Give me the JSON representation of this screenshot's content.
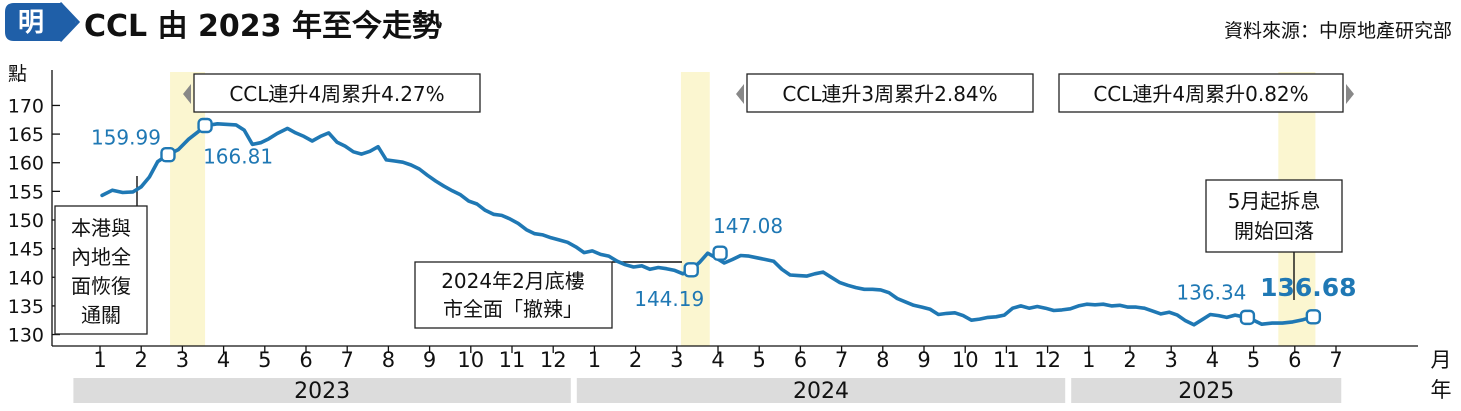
{
  "logo_char": "明",
  "chart_data": {
    "type": "line",
    "title": "CCL 由 2023 年至今走勢",
    "source": "資料來源：中原地產研究部",
    "ylabel": "點",
    "xlabel": "月年",
    "x_unit_top": "月",
    "x_unit_bottom": "年",
    "ylim": [
      128,
      172
    ],
    "yticks": [
      130,
      135,
      140,
      145,
      150,
      155,
      160,
      165,
      170
    ],
    "x_months": [
      "1",
      "2",
      "3",
      "4",
      "5",
      "6",
      "7",
      "8",
      "9",
      "10",
      "11",
      "12",
      "1",
      "2",
      "3",
      "4",
      "5",
      "6",
      "7",
      "8",
      "9",
      "10",
      "11",
      "12",
      "1",
      "2",
      "3",
      "4",
      "5",
      "6",
      "7"
    ],
    "years": [
      "2023",
      "2024",
      "2025"
    ],
    "color": "#1f78b4",
    "series": [
      {
        "values": [
          [
            1.05,
            154.3
          ],
          [
            1.3,
            155.2
          ],
          [
            1.55,
            154.8
          ],
          [
            1.8,
            154.9
          ],
          [
            2.0,
            155.8
          ],
          [
            2.2,
            157.5
          ],
          [
            2.4,
            160.2
          ],
          [
            2.65,
            161.4
          ],
          [
            2.9,
            162.3
          ],
          [
            3.15,
            164.1
          ],
          [
            3.4,
            165.5
          ],
          [
            3.6,
            166.5
          ],
          [
            3.85,
            166.8
          ],
          [
            4.1,
            166.7
          ],
          [
            4.3,
            166.6
          ],
          [
            4.5,
            165.7
          ],
          [
            4.7,
            163.2
          ],
          [
            4.9,
            163.5
          ],
          [
            5.1,
            164.2
          ],
          [
            5.3,
            165.1
          ],
          [
            5.55,
            166.0
          ],
          [
            5.75,
            165.2
          ],
          [
            5.95,
            164.6
          ],
          [
            6.15,
            163.8
          ],
          [
            6.35,
            164.6
          ],
          [
            6.55,
            165.2
          ],
          [
            6.75,
            163.6
          ],
          [
            6.95,
            162.9
          ],
          [
            7.15,
            161.9
          ],
          [
            7.35,
            161.5
          ],
          [
            7.55,
            162.0
          ],
          [
            7.75,
            162.8
          ],
          [
            7.95,
            160.5
          ],
          [
            8.15,
            160.3
          ],
          [
            8.35,
            160.1
          ],
          [
            8.55,
            159.6
          ],
          [
            8.75,
            158.9
          ],
          [
            8.95,
            157.8
          ],
          [
            9.15,
            156.8
          ],
          [
            9.35,
            155.9
          ],
          [
            9.55,
            155.1
          ],
          [
            9.75,
            154.4
          ],
          [
            9.95,
            153.3
          ],
          [
            10.15,
            152.8
          ],
          [
            10.35,
            151.7
          ],
          [
            10.55,
            151.0
          ],
          [
            10.75,
            150.8
          ],
          [
            10.95,
            150.2
          ],
          [
            11.15,
            149.4
          ],
          [
            11.35,
            148.3
          ],
          [
            11.55,
            147.6
          ],
          [
            11.75,
            147.4
          ],
          [
            11.95,
            146.9
          ],
          [
            12.15,
            146.5
          ],
          [
            12.35,
            146.1
          ],
          [
            12.55,
            145.3
          ],
          [
            12.75,
            144.3
          ],
          [
            12.95,
            144.6
          ],
          [
            13.15,
            144.0
          ],
          [
            13.35,
            143.7
          ],
          [
            13.55,
            142.8
          ],
          [
            13.75,
            142.2
          ],
          [
            13.95,
            141.8
          ],
          [
            14.15,
            142.0
          ],
          [
            14.35,
            141.4
          ],
          [
            14.55,
            141.7
          ],
          [
            14.75,
            141.5
          ],
          [
            14.95,
            141.2
          ],
          [
            15.15,
            140.6
          ],
          [
            15.35,
            141.3
          ],
          [
            15.55,
            142.6
          ],
          [
            15.75,
            144.2
          ],
          [
            15.95,
            143.4
          ],
          [
            16.15,
            142.5
          ],
          [
            16.35,
            143.1
          ],
          [
            16.55,
            143.8
          ],
          [
            16.75,
            143.7
          ],
          [
            16.95,
            143.4
          ],
          [
            17.15,
            143.1
          ],
          [
            17.35,
            142.8
          ],
          [
            17.55,
            141.4
          ],
          [
            17.75,
            140.4
          ],
          [
            17.95,
            140.3
          ],
          [
            18.15,
            140.2
          ],
          [
            18.35,
            140.6
          ],
          [
            18.55,
            140.9
          ],
          [
            18.75,
            140.0
          ],
          [
            18.95,
            139.1
          ],
          [
            19.15,
            138.6
          ],
          [
            19.35,
            138.2
          ],
          [
            19.55,
            137.9
          ],
          [
            19.75,
            137.9
          ],
          [
            19.95,
            137.8
          ],
          [
            20.15,
            137.3
          ],
          [
            20.35,
            136.3
          ],
          [
            20.55,
            135.7
          ],
          [
            20.75,
            135.1
          ],
          [
            20.95,
            134.8
          ],
          [
            21.15,
            134.4
          ],
          [
            21.35,
            133.5
          ],
          [
            21.55,
            133.7
          ],
          [
            21.75,
            133.8
          ],
          [
            21.95,
            133.3
          ],
          [
            22.15,
            132.5
          ],
          [
            22.35,
            132.7
          ],
          [
            22.55,
            133.0
          ],
          [
            22.75,
            133.1
          ],
          [
            22.95,
            133.4
          ],
          [
            23.15,
            134.6
          ],
          [
            23.35,
            135.0
          ],
          [
            23.55,
            134.6
          ],
          [
            23.75,
            134.9
          ],
          [
            23.95,
            134.6
          ],
          [
            24.15,
            134.2
          ],
          [
            24.35,
            134.3
          ],
          [
            24.55,
            134.5
          ],
          [
            24.75,
            135.0
          ],
          [
            24.95,
            135.3
          ],
          [
            25.15,
            135.2
          ],
          [
            25.35,
            135.3
          ],
          [
            25.55,
            135.0
          ],
          [
            25.75,
            135.1
          ],
          [
            25.95,
            134.8
          ],
          [
            26.15,
            134.8
          ],
          [
            26.35,
            134.6
          ],
          [
            26.55,
            134.1
          ],
          [
            26.75,
            133.6
          ],
          [
            26.95,
            133.9
          ],
          [
            27.15,
            133.4
          ],
          [
            27.35,
            132.4
          ],
          [
            27.55,
            131.7
          ],
          [
            27.75,
            132.6
          ],
          [
            27.95,
            133.5
          ],
          [
            28.15,
            133.3
          ],
          [
            28.35,
            133.0
          ],
          [
            28.55,
            133.4
          ],
          [
            28.75,
            133.1
          ],
          [
            28.85,
            133.0
          ],
          [
            29.0,
            132.5
          ],
          [
            29.2,
            131.8
          ],
          [
            29.45,
            132.0
          ],
          [
            29.7,
            132.0
          ],
          [
            29.95,
            132.2
          ],
          [
            30.2,
            132.6
          ],
          [
            30.45,
            133.1
          ]
        ]
      }
    ],
    "highlight_bands": [
      [
        2.7,
        3.55
      ],
      [
        15.1,
        15.8
      ],
      [
        29.6,
        30.5
      ]
    ],
    "points": [
      {
        "x": 2.65,
        "y": 161.4,
        "label": "159.99"
      },
      {
        "x": 3.55,
        "y": 166.5,
        "label": "166.81"
      },
      {
        "x": 15.35,
        "y": 141.3,
        "label": "144.19"
      },
      {
        "x": 16.05,
        "y": 144.2,
        "label": "147.08"
      },
      {
        "x": 28.85,
        "y": 133.0,
        "label": "136.34"
      },
      {
        "x": 30.45,
        "y": 133.1,
        "label": "136.68"
      }
    ],
    "annotations": [
      {
        "lines": [
          "CCL連升4周累升4.27%"
        ],
        "arrow": "left"
      },
      {
        "lines": [
          "CCL連升3周累升2.84%"
        ],
        "arrow": "left"
      },
      {
        "lines": [
          "CCL連升4周累升0.82%"
        ],
        "arrow": "right"
      },
      {
        "lines": [
          "本港與",
          "內地全",
          "面恢復",
          "通關"
        ]
      },
      {
        "lines": [
          "2024年2月底樓",
          "市全面「撤辣」"
        ]
      },
      {
        "lines": [
          "5月起拆息",
          "開始回落"
        ]
      }
    ]
  }
}
